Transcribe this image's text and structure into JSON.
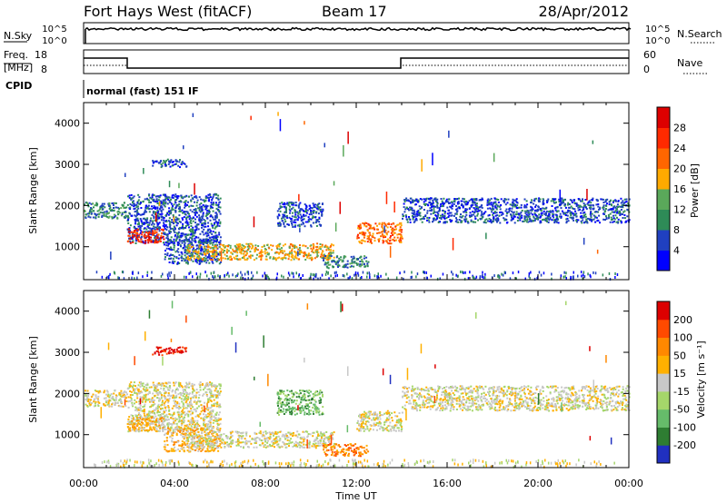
{
  "header": {
    "station": "Fort Hays West (fitACF)",
    "beam": "Beam 17",
    "date": "28/Apr/2012"
  },
  "sky_panel": {
    "left_label": "N.Sky",
    "right_label": "N.Search",
    "top_tick": "10^5",
    "bottom_tick": "10^0"
  },
  "freq_panel": {
    "left_label_line1": "Freq.",
    "left_label_line2": "[MHz]",
    "left_ticks": [
      "18",
      "8"
    ],
    "right_ticks": [
      "60",
      "0"
    ],
    "right_label": "Nave",
    "cpid_label": "CPID",
    "mode_text": "normal (fast) 151 IF"
  },
  "chart_data": [
    {
      "type": "heatmap",
      "name": "power-panel",
      "ylabel": "Slant Range [km]",
      "ylim": [
        200,
        4500
      ],
      "yticks": [
        1000,
        2000,
        3000,
        4000
      ],
      "xlim": [
        0,
        24
      ],
      "colorbar": {
        "label": "Power [dB]",
        "range": [
          0,
          32
        ],
        "ticks": [
          "28",
          "24",
          "20",
          "16",
          "12",
          "8",
          "4"
        ],
        "tick_values": [
          28,
          24,
          20,
          16,
          12,
          8,
          4
        ],
        "colors": [
          "#0000ff",
          "#2040c0",
          "#2e8b57",
          "#5aa85a",
          "#ffaa00",
          "#ff6600",
          "#ff2a00",
          "#dd0000"
        ]
      },
      "bands": [
        {
          "x": [
            0.0,
            1.9
          ],
          "y": [
            1700,
            2100
          ],
          "level": 2
        },
        {
          "x": [
            1.9,
            6.0
          ],
          "y": [
            1100,
            2300
          ],
          "level": 1
        },
        {
          "x": [
            1.9,
            3.5
          ],
          "y": [
            1100,
            1450
          ],
          "level": 6
        },
        {
          "x": [
            3.5,
            6.0
          ],
          "y": [
            600,
            1200
          ],
          "level": 1
        },
        {
          "x": [
            4.5,
            11.0
          ],
          "y": [
            700,
            1100
          ],
          "level": 4
        },
        {
          "x": [
            8.5,
            10.5
          ],
          "y": [
            1500,
            2100
          ],
          "level": 1
        },
        {
          "x": [
            10.5,
            12.5
          ],
          "y": [
            500,
            800
          ],
          "level": 2
        },
        {
          "x": [
            12.0,
            14.0
          ],
          "y": [
            1100,
            1600
          ],
          "level": 5
        },
        {
          "x": [
            14.0,
            24.0
          ],
          "y": [
            1600,
            2200
          ],
          "level": 1
        },
        {
          "x": [
            3.0,
            4.5
          ],
          "y": [
            2950,
            3150
          ],
          "level": 1
        }
      ]
    },
    {
      "type": "heatmap",
      "name": "velocity-panel",
      "ylabel": "Slant Range [km]",
      "ylim": [
        200,
        4500
      ],
      "yticks": [
        1000,
        2000,
        3000,
        4000
      ],
      "xlim": [
        0,
        24
      ],
      "xlabel": "Time UT",
      "xticks": [
        "00:00",
        "04:00",
        "08:00",
        "12:00",
        "16:00",
        "20:00",
        "00:00"
      ],
      "colorbar": {
        "label": "Velocity [m s⁻¹]",
        "ticks": [
          "200",
          "100",
          "50",
          "15",
          "-15",
          "-50",
          "-100",
          "-200"
        ],
        "colors": [
          "#2030c0",
          "#2e7d32",
          "#66bb6a",
          "#a5d66a",
          "#c8c8c8",
          "#ffb000",
          "#ff8800",
          "#ff4a00",
          "#dd0000"
        ]
      },
      "bands": [
        {
          "x": [
            0.0,
            1.9
          ],
          "y": [
            1700,
            2100
          ],
          "level": 4
        },
        {
          "x": [
            1.9,
            6.0
          ],
          "y": [
            1100,
            2300
          ],
          "level": 4
        },
        {
          "x": [
            1.9,
            3.5
          ],
          "y": [
            1100,
            1450
          ],
          "level": 5
        },
        {
          "x": [
            3.5,
            6.0
          ],
          "y": [
            600,
            1200
          ],
          "level": 5
        },
        {
          "x": [
            4.5,
            11.0
          ],
          "y": [
            700,
            1100
          ],
          "level": 4
        },
        {
          "x": [
            8.5,
            10.5
          ],
          "y": [
            1500,
            2100
          ],
          "level": 2
        },
        {
          "x": [
            10.5,
            12.5
          ],
          "y": [
            500,
            800
          ],
          "level": 6
        },
        {
          "x": [
            12.0,
            14.0
          ],
          "y": [
            1100,
            1600
          ],
          "level": 4
        },
        {
          "x": [
            14.0,
            24.0
          ],
          "y": [
            1600,
            2200
          ],
          "level": 4
        },
        {
          "x": [
            3.0,
            4.5
          ],
          "y": [
            2950,
            3150
          ],
          "level": 8
        }
      ]
    }
  ]
}
